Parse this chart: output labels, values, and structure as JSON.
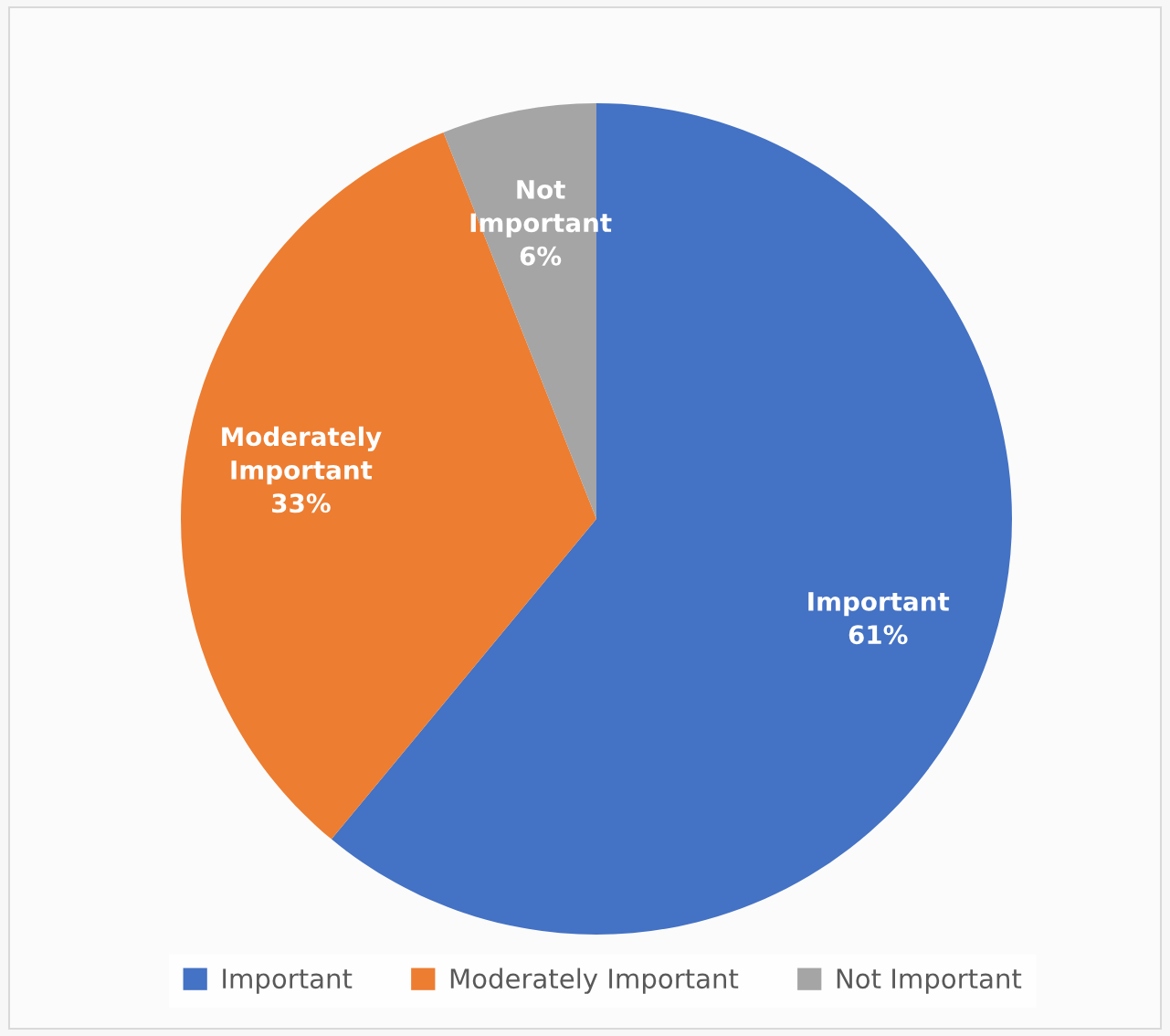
{
  "chart_data": {
    "type": "pie",
    "categories": [
      "Important",
      "Moderately Important",
      "Not Important"
    ],
    "values": [
      61,
      33,
      6
    ],
    "colors": [
      "#4472c4",
      "#ed7d31",
      "#a5a5a5"
    ],
    "value_labels": [
      "61%",
      "33%",
      "6%"
    ],
    "legend": "bottom"
  }
}
